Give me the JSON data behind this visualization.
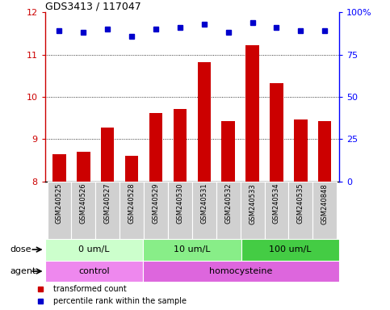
{
  "title": "GDS3413 / 117047",
  "samples": [
    "GSM240525",
    "GSM240526",
    "GSM240527",
    "GSM240528",
    "GSM240529",
    "GSM240530",
    "GSM240531",
    "GSM240532",
    "GSM240533",
    "GSM240534",
    "GSM240535",
    "GSM240848"
  ],
  "transformed_count": [
    8.65,
    8.7,
    9.27,
    8.6,
    9.62,
    9.72,
    10.83,
    9.42,
    11.22,
    10.32,
    9.47,
    9.42
  ],
  "percentile_rank": [
    89,
    88,
    90,
    86,
    90,
    91,
    93,
    88,
    94,
    91,
    89,
    89
  ],
  "bar_color": "#cc0000",
  "dot_color": "#0000cc",
  "ylim_left": [
    8,
    12
  ],
  "ylim_right": [
    0,
    100
  ],
  "yticks_left": [
    8,
    9,
    10,
    11,
    12
  ],
  "yticks_right": [
    0,
    25,
    50,
    75,
    100
  ],
  "ytick_labels_right": [
    "0",
    "25",
    "50",
    "75",
    "100%"
  ],
  "dose_groups": [
    {
      "label": "0 um/L",
      "start": 0,
      "end": 4,
      "color": "#ccffcc"
    },
    {
      "label": "10 um/L",
      "start": 4,
      "end": 8,
      "color": "#88ee88"
    },
    {
      "label": "100 um/L",
      "start": 8,
      "end": 12,
      "color": "#44cc44"
    }
  ],
  "agent_groups": [
    {
      "label": "control",
      "start": 0,
      "end": 4,
      "color": "#ee88ee"
    },
    {
      "label": "homocysteine",
      "start": 4,
      "end": 12,
      "color": "#dd66dd"
    }
  ],
  "legend_bar_label": "transformed count",
  "legend_dot_label": "percentile rank within the sample",
  "label_dose": "dose",
  "label_agent": "agent",
  "sample_label_bg": "#d0d0d0",
  "plot_bg": "#ffffff"
}
